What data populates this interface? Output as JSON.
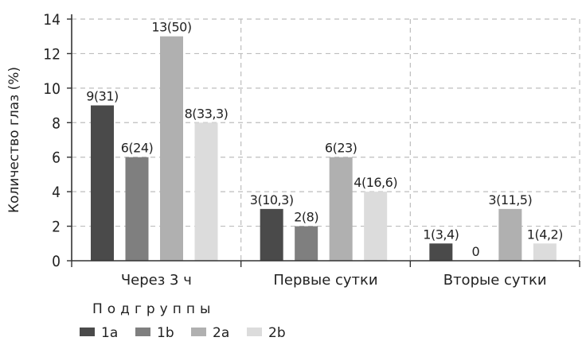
{
  "chart_data": {
    "type": "bar",
    "ylabel": "Количество глаз (%)",
    "ylim": [
      0,
      14
    ],
    "yticks": [
      0,
      2,
      4,
      6,
      8,
      10,
      12,
      14
    ],
    "grid": true,
    "legend_title": "Подгруппы",
    "legend_position": "bottom-left",
    "categories": [
      "Через 3 ч",
      "Первые сутки",
      "Вторые сутки"
    ],
    "series": [
      {
        "name": "1a",
        "color": "#4a4a4a",
        "values": [
          9,
          3,
          1
        ],
        "labels": [
          "9(31)",
          "3(10,3)",
          "1(3,4)"
        ]
      },
      {
        "name": "1b",
        "color": "#7f7f7f",
        "values": [
          6,
          2,
          0
        ],
        "labels": [
          "6(24)",
          "2(8)",
          "0"
        ]
      },
      {
        "name": "2a",
        "color": "#b0b0b0",
        "values": [
          13,
          6,
          3
        ],
        "labels": [
          "13(50)",
          "6(23)",
          "3(11,5)"
        ]
      },
      {
        "name": "2b",
        "color": "#dcdcdc",
        "values": [
          8,
          4,
          1
        ],
        "labels": [
          "8(33,3)",
          "4(16,6)",
          "1(4,2)"
        ]
      }
    ]
  }
}
